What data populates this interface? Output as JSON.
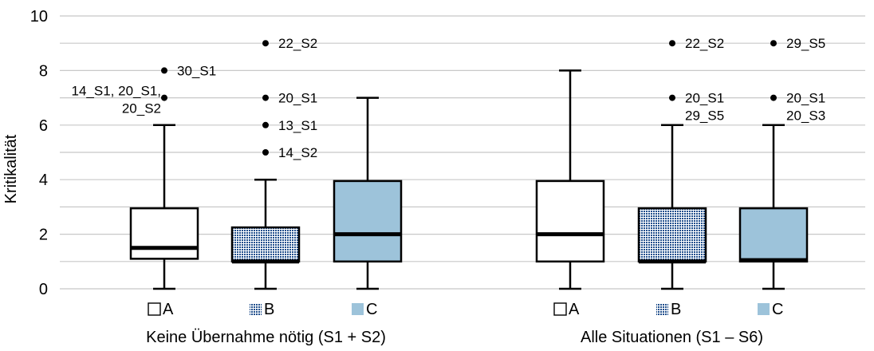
{
  "chart_data": {
    "type": "boxplot",
    "ylabel": "Kritikalität",
    "ylim": [
      0,
      10
    ],
    "yticks": [
      0,
      2,
      4,
      6,
      8,
      10
    ],
    "grid": "horizontal",
    "colors": {
      "A": "#ffffff",
      "B": "#1f4e8c",
      "C": "#9dc3da"
    },
    "groups": [
      {
        "label": "Keine Übernahme nötig (S1 + S2)",
        "boxes": [
          {
            "category": "A",
            "fill": "none",
            "min": 0,
            "q1": 1.1,
            "median": 1.5,
            "q3": 2.95,
            "max": 6,
            "outliers": [
              {
                "value": 8,
                "labels": [
                  "30_S1"
                ],
                "side": "right"
              },
              {
                "value": 7,
                "labels": [
                  "14_S1, 20_S1,",
                  "20_S2"
                ],
                "side": "left"
              }
            ]
          },
          {
            "category": "B",
            "fill": "dots",
            "min": 0,
            "q1": 1,
            "median": 1,
            "q3": 2.25,
            "max": 4,
            "outliers": [
              {
                "value": 9,
                "labels": [
                  "22_S2"
                ],
                "side": "right"
              },
              {
                "value": 7,
                "labels": [
                  "20_S1"
                ],
                "side": "right"
              },
              {
                "value": 6,
                "labels": [
                  "13_S1"
                ],
                "side": "right"
              },
              {
                "value": 5,
                "labels": [
                  "14_S2"
                ],
                "side": "right"
              }
            ]
          },
          {
            "category": "C",
            "fill": "solid",
            "min": 0,
            "q1": 1,
            "median": 2,
            "q3": 3.95,
            "max": 7,
            "outliers": []
          }
        ]
      },
      {
        "label": "Alle Situationen (S1 – S6)",
        "boxes": [
          {
            "category": "A",
            "fill": "none",
            "min": 0,
            "q1": 1,
            "median": 2,
            "q3": 3.95,
            "max": 8,
            "outliers": []
          },
          {
            "category": "B",
            "fill": "dots",
            "min": 0,
            "q1": 1,
            "median": 1,
            "q3": 2.95,
            "max": 6,
            "outliers": [
              {
                "value": 9,
                "labels": [
                  "22_S2"
                ],
                "side": "right"
              },
              {
                "value": 7,
                "labels": [
                  "20_S1",
                  "29_S5"
                ],
                "side": "right"
              }
            ]
          },
          {
            "category": "C",
            "fill": "solid",
            "min": 0,
            "q1": 1,
            "median": 1.05,
            "q3": 2.95,
            "max": 6,
            "outliers": [
              {
                "value": 9,
                "labels": [
                  "29_S5"
                ],
                "side": "right"
              },
              {
                "value": 7,
                "labels": [
                  "20_S1",
                  "20_S3"
                ],
                "side": "right"
              }
            ]
          }
        ]
      }
    ]
  }
}
